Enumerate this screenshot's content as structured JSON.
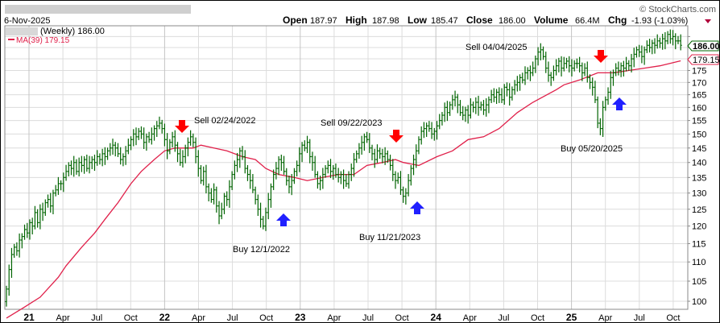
{
  "header": {
    "date": "6-Nov-2025",
    "watermark": "© StockCharts.com",
    "open_label": "Open",
    "open": "187.97",
    "high_label": "High",
    "high": "187.98",
    "low_label": "Low",
    "low": "185.47",
    "close_label": "Close",
    "close": "186.00",
    "volume_label": "Volume",
    "volume": "66.4M",
    "chg_label": "Chg",
    "chg": "-1.93 (-1.03%)"
  },
  "legend": {
    "price_label": "(Weekly) 186.00",
    "ma_label": "MA(39) 179.15"
  },
  "colors": {
    "bars": "#006400",
    "ma": "#e0204a",
    "sell": "#ff0000",
    "buy": "#2020ff",
    "grid": "#d8d8d8"
  },
  "chart_data": {
    "type": "ohlc-bar",
    "title": "(Weekly)",
    "period": "weekly, Nov 2020 - Nov 2025",
    "y_scale": "log",
    "ylim": [
      98,
      194
    ],
    "y_ticks": [
      100,
      105,
      110,
      115,
      120,
      125,
      130,
      135,
      140,
      145,
      150,
      155,
      160,
      165,
      170,
      175,
      180,
      185,
      190
    ],
    "x_tick_labels": [
      {
        "label": "21",
        "year": true
      },
      {
        "label": "Apr"
      },
      {
        "label": "Jul"
      },
      {
        "label": "Oct"
      },
      {
        "label": "22",
        "year": true
      },
      {
        "label": "Apr"
      },
      {
        "label": "Jul"
      },
      {
        "label": "Oct"
      },
      {
        "label": "23",
        "year": true
      },
      {
        "label": "Apr"
      },
      {
        "label": "Jul"
      },
      {
        "label": "Oct"
      },
      {
        "label": "24",
        "year": true
      },
      {
        "label": "Apr"
      },
      {
        "label": "Jul"
      },
      {
        "label": "Oct"
      },
      {
        "label": "25",
        "year": true
      },
      {
        "label": "Apr"
      },
      {
        "label": "Jul"
      },
      {
        "label": "Oct"
      }
    ],
    "close": [
      103,
      108,
      112,
      114,
      113,
      116,
      117,
      119,
      118,
      121,
      120,
      124,
      121,
      125,
      124,
      127,
      128,
      126,
      130,
      131,
      133,
      133,
      135,
      137,
      139,
      138,
      140,
      137,
      140,
      139,
      141,
      138,
      140,
      141,
      140,
      142,
      141,
      143,
      142,
      144,
      145,
      146,
      145,
      143,
      141,
      142,
      144,
      146,
      148,
      150,
      149,
      151,
      150,
      147,
      149,
      148,
      150,
      152,
      153,
      154,
      152,
      148,
      144,
      147,
      149,
      146,
      143,
      140,
      142,
      145,
      147,
      149,
      147,
      142,
      138,
      134,
      137,
      132,
      130,
      128,
      131,
      126,
      123,
      125,
      129,
      128,
      132,
      136,
      139,
      141,
      144,
      142,
      138,
      136,
      134,
      131,
      128,
      125,
      122,
      120,
      124,
      128,
      132,
      136,
      138,
      141,
      140,
      137,
      134,
      132,
      134,
      137,
      139,
      143,
      146,
      145,
      147,
      142,
      140,
      136,
      133,
      134,
      136,
      138,
      139,
      137,
      138,
      136,
      135,
      136,
      134,
      133,
      136,
      138,
      141,
      143,
      145,
      147,
      149,
      148,
      145,
      143,
      141,
      144,
      143,
      142,
      143,
      141,
      139,
      136,
      134,
      135,
      131,
      129,
      130,
      134,
      138,
      141,
      144,
      148,
      151,
      152,
      153,
      152,
      150,
      151,
      153,
      155,
      157,
      160,
      158,
      161,
      163,
      164,
      161,
      158,
      157,
      159,
      157,
      161,
      160,
      162,
      160,
      161,
      159,
      161,
      163,
      165,
      164,
      166,
      165,
      163,
      168,
      167,
      164,
      167,
      169,
      170,
      172,
      171,
      174,
      175,
      174,
      176,
      180,
      183,
      184,
      181,
      176,
      173,
      172,
      175,
      177,
      179,
      176,
      178,
      179,
      177,
      176,
      178,
      178,
      177,
      174,
      176,
      172,
      170,
      168,
      163,
      154,
      152,
      160,
      163,
      166,
      172,
      174,
      176,
      175,
      177,
      176,
      178,
      177,
      180,
      182,
      184,
      183,
      181,
      184,
      186,
      185,
      187,
      186,
      188,
      187,
      189,
      188,
      191,
      189,
      190,
      188,
      188,
      186
    ],
    "ma39": [
      [
        0,
        96
      ],
      [
        7,
        98.6
      ],
      [
        13,
        101
      ],
      [
        20,
        106
      ],
      [
        23,
        109
      ],
      [
        29,
        114
      ],
      [
        34,
        118
      ],
      [
        38,
        122
      ],
      [
        43,
        127
      ],
      [
        48,
        133
      ],
      [
        52,
        137
      ],
      [
        57,
        141
      ],
      [
        61,
        144
      ],
      [
        65,
        145
      ],
      [
        72,
        145
      ],
      [
        75,
        146
      ],
      [
        80,
        145
      ],
      [
        85,
        144
      ],
      [
        91,
        142
      ],
      [
        96,
        141
      ],
      [
        100,
        138
      ],
      [
        105,
        136
      ],
      [
        111,
        135
      ],
      [
        116,
        134
      ],
      [
        122,
        135
      ],
      [
        128,
        136
      ],
      [
        134,
        136
      ],
      [
        139,
        139
      ],
      [
        145,
        140
      ],
      [
        150,
        141
      ],
      [
        153,
        140
      ],
      [
        159,
        139
      ],
      [
        166,
        142
      ],
      [
        172,
        144
      ],
      [
        178,
        148
      ],
      [
        184,
        149
      ],
      [
        190,
        152
      ],
      [
        197,
        158
      ],
      [
        203,
        162
      ],
      [
        212,
        167
      ],
      [
        215,
        169
      ],
      [
        221,
        171
      ],
      [
        228,
        174
      ],
      [
        234,
        174
      ],
      [
        240,
        175
      ],
      [
        246,
        176
      ],
      [
        252,
        177
      ],
      [
        260,
        179.15
      ]
    ],
    "last_price": "186.00",
    "last_ma": "179.15",
    "signals": [
      {
        "type": "sell",
        "label": "Sell 02/24/2022"
      },
      {
        "type": "buy",
        "label": "Buy 12/1/2022"
      },
      {
        "type": "sell",
        "label": "Sell 09/22/2023"
      },
      {
        "type": "buy",
        "label": "Buy 11/21/2023"
      },
      {
        "type": "sell",
        "label": "Sell 04/04/2025"
      },
      {
        "type": "buy",
        "label": "Buy 05/20/2025"
      }
    ]
  }
}
